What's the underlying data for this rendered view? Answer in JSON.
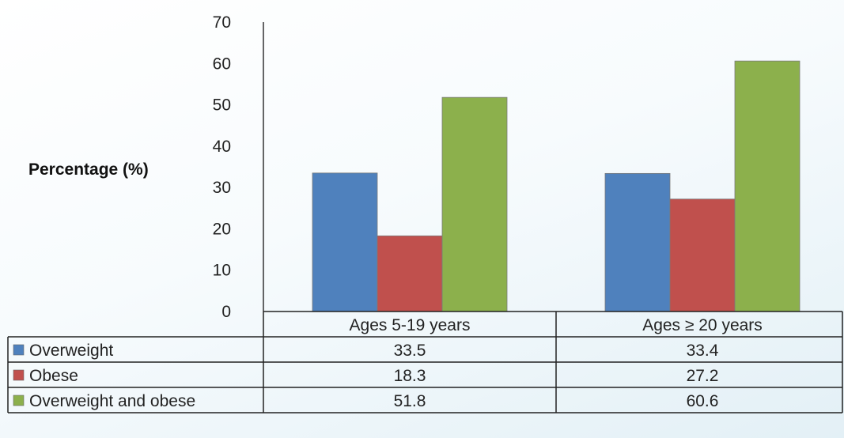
{
  "chart_data": {
    "type": "bar",
    "ylabel": "Percentage (%)",
    "ylim": [
      0,
      70
    ],
    "yticks": [
      0,
      10,
      20,
      30,
      40,
      50,
      60,
      70
    ],
    "categories": [
      "Ages 5-19 years",
      "Ages ≥ 20 years"
    ],
    "series": [
      {
        "name": "Overweight",
        "color": "#4f81bd",
        "values": [
          33.5,
          33.4
        ]
      },
      {
        "name": "Obese",
        "color": "#c0504d",
        "values": [
          18.3,
          27.2
        ]
      },
      {
        "name": "Overweight and obese",
        "color": "#8cb04c",
        "values": [
          51.8,
          60.6
        ]
      }
    ],
    "data_table": true,
    "grid": false,
    "legend": "data-table"
  }
}
